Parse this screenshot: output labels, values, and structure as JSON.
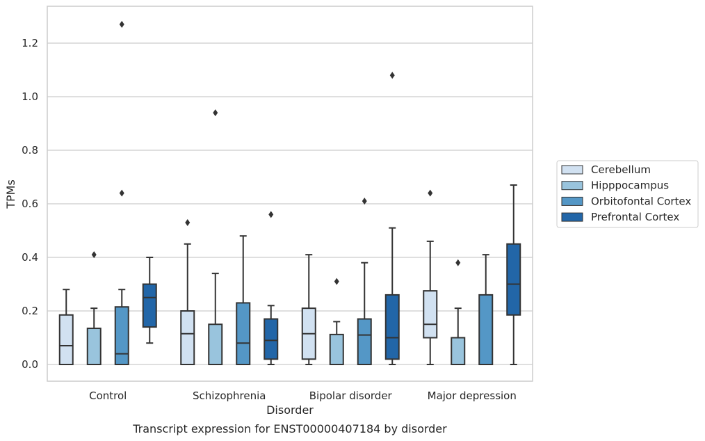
{
  "chart_data": {
    "type": "box",
    "caption": "Transcript expression for ENST00000407184 by disorder",
    "xlabel": "Disorder",
    "ylabel": "TPMs",
    "ylim": [
      -0.06,
      1.34
    ],
    "yticks": [
      "0.0",
      "0.2",
      "0.4",
      "0.6",
      "0.8",
      "1.0",
      "1.2"
    ],
    "ytick_values": [
      0,
      0.2,
      0.4,
      0.6,
      0.8,
      1.0,
      1.2
    ],
    "grid": "horizontal",
    "legend_position": "right",
    "categories": [
      "Control",
      "Schizophrenia",
      "Bipolar disorder",
      "Major depression"
    ],
    "series": [
      {
        "name": "Cerebellum",
        "color": "#d1e1f1",
        "boxes": [
          {
            "whisker_low": 0,
            "q1": 0,
            "median": 0.07,
            "q3": 0.185,
            "whisker_high": 0.28,
            "outliers": []
          },
          {
            "whisker_low": 0,
            "q1": 0,
            "median": 0.115,
            "q3": 0.2,
            "whisker_high": 0.45,
            "outliers": [
              0.53
            ]
          },
          {
            "whisker_low": 0,
            "q1": 0.02,
            "median": 0.115,
            "q3": 0.21,
            "whisker_high": 0.41,
            "outliers": []
          },
          {
            "whisker_low": 0,
            "q1": 0.1,
            "median": 0.15,
            "q3": 0.275,
            "whisker_high": 0.46,
            "outliers": [
              0.64
            ]
          }
        ]
      },
      {
        "name": "Hipppocampus",
        "color": "#99c4dd",
        "boxes": [
          {
            "whisker_low": 0,
            "q1": 0,
            "median": 0,
            "q3": 0.135,
            "whisker_high": 0.21,
            "outliers": [
              0.41
            ]
          },
          {
            "whisker_low": 0,
            "q1": 0,
            "median": 0,
            "q3": 0.15,
            "whisker_high": 0.34,
            "outliers": [
              0.94
            ]
          },
          {
            "whisker_low": 0,
            "q1": 0,
            "median": 0,
            "q3": 0.112,
            "whisker_high": 0.16,
            "outliers": [
              0.31
            ]
          },
          {
            "whisker_low": 0,
            "q1": 0,
            "median": 0.1,
            "q3": 0.1,
            "whisker_high": 0.21,
            "outliers": [
              0.38
            ]
          }
        ]
      },
      {
        "name": "Orbitofontal Cortex",
        "color": "#5497c6",
        "boxes": [
          {
            "whisker_low": 0,
            "q1": 0,
            "median": 0.04,
            "q3": 0.215,
            "whisker_high": 0.28,
            "outliers": [
              0.64,
              1.27
            ]
          },
          {
            "whisker_low": 0,
            "q1": 0,
            "median": 0.08,
            "q3": 0.23,
            "whisker_high": 0.48,
            "outliers": []
          },
          {
            "whisker_low": 0,
            "q1": 0,
            "median": 0.11,
            "q3": 0.17,
            "whisker_high": 0.38,
            "outliers": [
              0.61
            ]
          },
          {
            "whisker_low": 0,
            "q1": 0,
            "median": 0,
            "q3": 0.26,
            "whisker_high": 0.41,
            "outliers": []
          }
        ]
      },
      {
        "name": "Prefrontal Cortex",
        "color": "#2266a8",
        "boxes": [
          {
            "whisker_low": 0.08,
            "q1": 0.14,
            "median": 0.25,
            "q3": 0.3,
            "whisker_high": 0.4,
            "outliers": []
          },
          {
            "whisker_low": 0,
            "q1": 0.02,
            "median": 0.09,
            "q3": 0.17,
            "whisker_high": 0.22,
            "outliers": [
              0.56
            ]
          },
          {
            "whisker_low": 0,
            "q1": 0.02,
            "median": 0.1,
            "q3": 0.26,
            "whisker_high": 0.51,
            "outliers": [
              1.08
            ]
          },
          {
            "whisker_low": 0,
            "q1": 0.185,
            "median": 0.3,
            "q3": 0.45,
            "whisker_high": 0.67,
            "outliers": []
          }
        ]
      }
    ]
  }
}
